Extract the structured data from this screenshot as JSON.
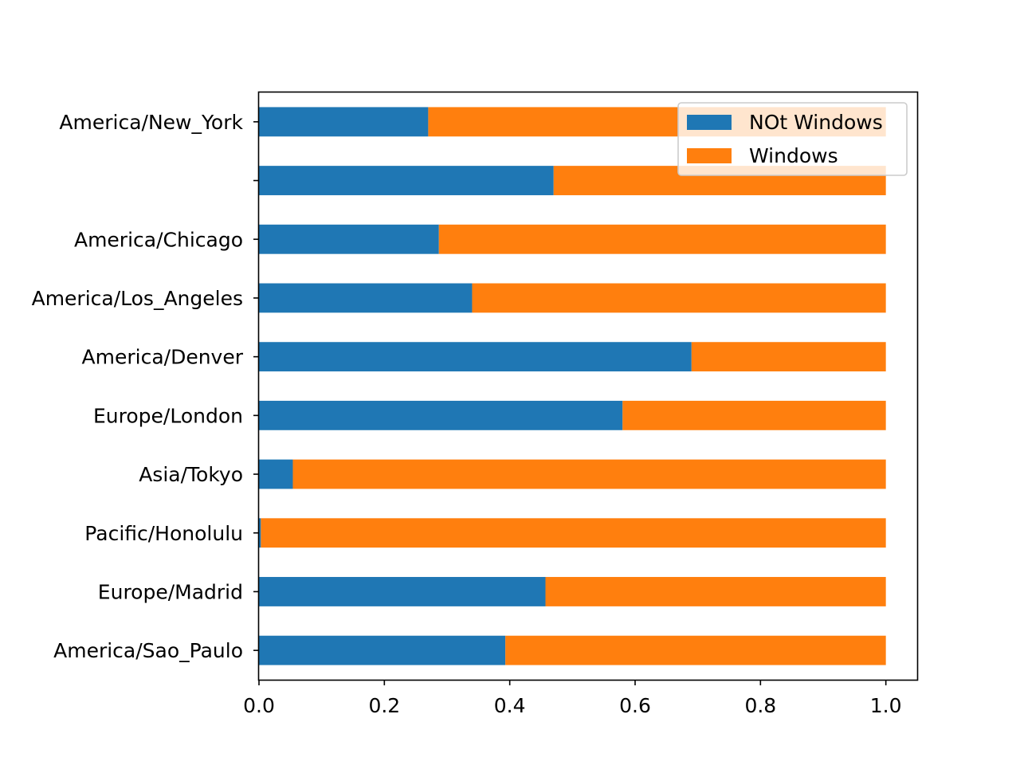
{
  "chart_data": {
    "type": "bar",
    "orientation": "horizontal",
    "stacked": true,
    "categories": [
      "America/New_York",
      "",
      "America/Chicago",
      "America/Los_Angeles",
      "America/Denver",
      "Europe/London",
      "Asia/Tokyo",
      "Pacific/Honolulu",
      "Europe/Madrid",
      "America/Sao_Paulo"
    ],
    "series": [
      {
        "name": "NOt Windows",
        "color": "#1f77b4",
        "values": [
          0.27,
          0.47,
          0.287,
          0.34,
          0.69,
          0.58,
          0.054,
          0.003,
          0.457,
          0.393
        ]
      },
      {
        "name": "Windows",
        "color": "#ff7f0e",
        "values": [
          0.73,
          0.53,
          0.713,
          0.66,
          0.31,
          0.42,
          0.946,
          0.997,
          0.543,
          0.607
        ]
      }
    ],
    "xlim": [
      0.0,
      1.05
    ],
    "xticks": [
      "0.0",
      "0.2",
      "0.4",
      "0.6",
      "0.8",
      "1.0"
    ],
    "title": "",
    "xlabel": "",
    "ylabel": "",
    "grid": false,
    "legend_position": "top-right"
  }
}
